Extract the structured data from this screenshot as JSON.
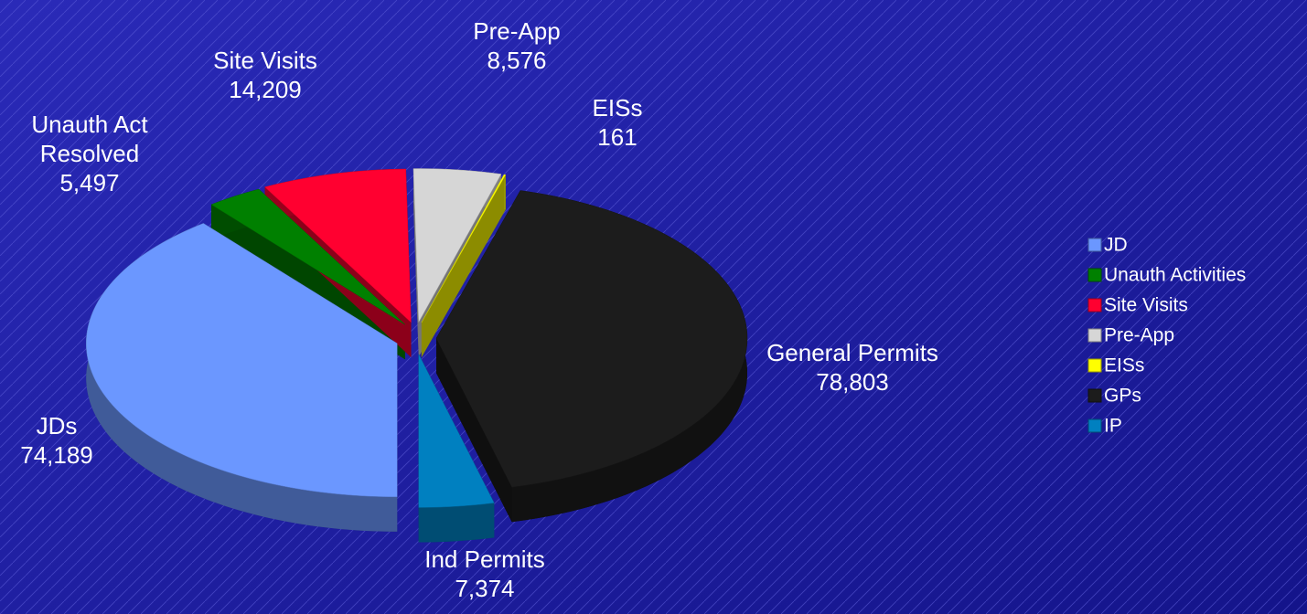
{
  "chart_data": {
    "type": "pie3d",
    "categories": [
      "JD",
      "Unauth Activities",
      "Site Visits",
      "Pre-App",
      "EISs",
      "GPs",
      "IP"
    ],
    "labels": [
      "JDs",
      "Unauth Act Resolved",
      "Site Visits",
      "Pre-App",
      "EISs",
      "General Permits",
      "Ind Permits"
    ],
    "values": [
      74189,
      5497,
      14209,
      8576,
      161,
      78803,
      7374
    ],
    "value_labels": [
      "74,189",
      "5,497",
      "14,209",
      "8,576",
      "161",
      "78,803",
      "7,374"
    ],
    "colors": [
      "#6b97ff",
      "#008000",
      "#ff0030",
      "#d6d6d6",
      "#ffff00",
      "#1c1c1c",
      "#0080c0"
    ],
    "legend": "right"
  }
}
